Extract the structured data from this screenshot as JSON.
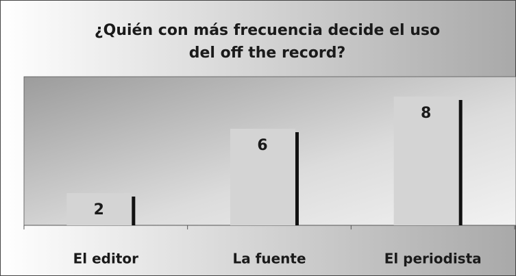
{
  "chart_data": {
    "type": "bar",
    "title": [
      "¿Quién con más frecuencia decide el uso",
      "del off the record?"
    ],
    "categories": [
      "El editor",
      "La fuente",
      "El periodista"
    ],
    "values": [
      2,
      6,
      8
    ],
    "color": "#d4d4d4"
  }
}
